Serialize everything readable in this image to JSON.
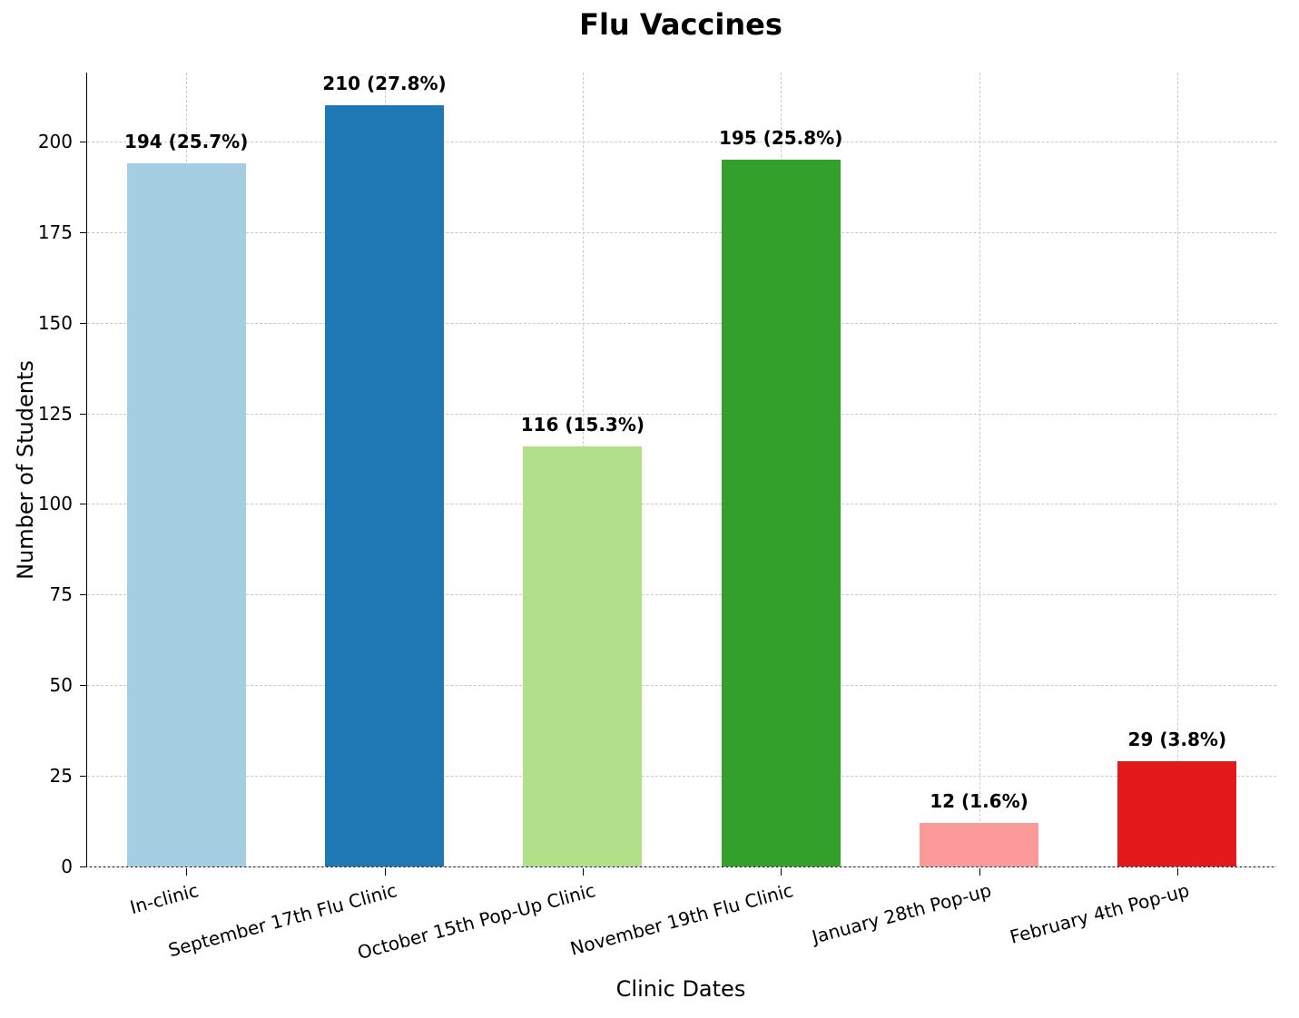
{
  "chart_data": {
    "type": "bar",
    "title": "Flu Vaccines",
    "xlabel": "Clinic Dates",
    "ylabel": "Number of Students",
    "categories": [
      "In-clinic",
      "September 17th Flu Clinic",
      "October 15th Pop-Up Clinic",
      "November 19th Flu Clinic",
      "January 28th Pop-up",
      "February 4th Pop-up"
    ],
    "values": [
      194,
      210,
      116,
      195,
      12,
      29
    ],
    "value_labels": [
      "194 (25.7%)",
      "210 (27.8%)",
      "116 (15.3%)",
      "195 (25.8%)",
      "12 (1.6%)",
      "29 (3.8%)"
    ],
    "bar_colors": [
      "#a6cee3",
      "#1f78b4",
      "#b2df8a",
      "#33a02c",
      "#fb9a99",
      "#e31a1c"
    ],
    "yticks": [
      0,
      25,
      50,
      75,
      100,
      125,
      150,
      175,
      200
    ],
    "ylim": [
      0,
      219
    ],
    "grid": "dashed, horizontal and vertical",
    "legend": "none",
    "background_color": "#ffffff",
    "gridline_color": "#c9c9c9"
  }
}
